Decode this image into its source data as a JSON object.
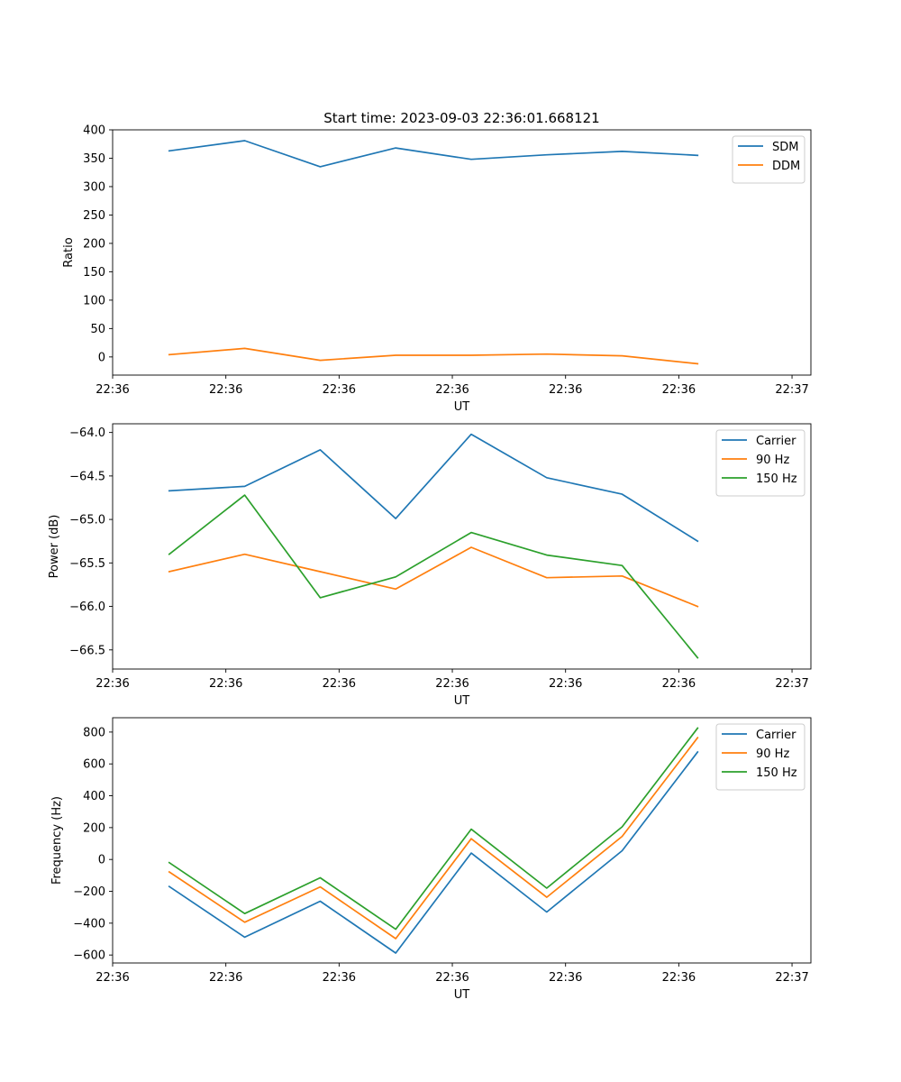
{
  "chart_data": [
    {
      "type": "line",
      "title": "Start time: 2023-09-03 22:36:01.668121",
      "xlabel": "UT",
      "ylabel": "Ratio",
      "x": [
        0,
        1,
        2,
        3,
        4,
        5,
        6,
        7
      ],
      "xlim": [
        -0.75,
        8.5
      ],
      "ylim": [
        -32,
        400
      ],
      "xticks": [
        -0.75,
        0.75,
        2.25,
        3.75,
        5.25,
        6.75,
        8.25
      ],
      "xtick_labels": [
        "22:36",
        "22:36",
        "22:36",
        "22:36",
        "22:36",
        "22:36",
        "22:37"
      ],
      "yticks": [
        0,
        50,
        100,
        150,
        200,
        250,
        300,
        350,
        400
      ],
      "ytick_labels": [
        "0",
        "50",
        "100",
        "150",
        "200",
        "250",
        "300",
        "350",
        "400"
      ],
      "legend_position": "top-right",
      "series": [
        {
          "name": "SDM",
          "color": "#1f77b4",
          "values": [
            363,
            381,
            335,
            368,
            348,
            356,
            362,
            355
          ]
        },
        {
          "name": "DDM",
          "color": "#ff7f0e",
          "values": [
            4,
            15,
            -6,
            3,
            3,
            5,
            2,
            -12
          ]
        }
      ]
    },
    {
      "type": "line",
      "title": "",
      "xlabel": "UT",
      "ylabel": "Power (dB)",
      "x": [
        0,
        1,
        2,
        3,
        4,
        5,
        6,
        7
      ],
      "xlim": [
        -0.75,
        8.5
      ],
      "ylim": [
        -66.72,
        -63.9
      ],
      "xticks": [
        -0.75,
        0.75,
        2.25,
        3.75,
        5.25,
        6.75,
        8.25
      ],
      "xtick_labels": [
        "22:36",
        "22:36",
        "22:36",
        "22:36",
        "22:36",
        "22:36",
        "22:37"
      ],
      "yticks": [
        -64.0,
        -64.5,
        -65.0,
        -65.5,
        -66.0,
        -66.5
      ],
      "ytick_labels": [
        "−64.0",
        "−64.5",
        "−65.0",
        "−65.5",
        "−66.0",
        "−66.5"
      ],
      "legend_position": "top-right",
      "series": [
        {
          "name": "Carrier",
          "color": "#1f77b4",
          "values": [
            -64.67,
            -64.62,
            -64.2,
            -64.99,
            -64.02,
            -64.52,
            -64.71,
            -65.25
          ]
        },
        {
          "name": "90 Hz",
          "color": "#ff7f0e",
          "values": [
            -65.6,
            -65.4,
            -65.6,
            -65.8,
            -65.32,
            -65.67,
            -65.65,
            -66.0
          ]
        },
        {
          "name": "150 Hz",
          "color": "#2ca02c",
          "values": [
            -65.4,
            -64.72,
            -65.9,
            -65.66,
            -65.15,
            -65.41,
            -65.53,
            -66.59
          ]
        }
      ]
    },
    {
      "type": "line",
      "title": "",
      "xlabel": "UT",
      "ylabel": "Frequency (Hz)",
      "x": [
        0,
        1,
        2,
        3,
        4,
        5,
        6,
        7
      ],
      "xlim": [
        -0.75,
        8.5
      ],
      "ylim": [
        -650,
        890
      ],
      "xticks": [
        -0.75,
        0.75,
        2.25,
        3.75,
        5.25,
        6.75,
        8.25
      ],
      "xtick_labels": [
        "22:36",
        "22:36",
        "22:36",
        "22:36",
        "22:36",
        "22:36",
        "22:37"
      ],
      "yticks": [
        -600,
        -400,
        -200,
        0,
        200,
        400,
        600,
        800
      ],
      "ytick_labels": [
        "−600",
        "−400",
        "−200",
        "0",
        "200",
        "400",
        "600",
        "800"
      ],
      "legend_position": "top-right",
      "series": [
        {
          "name": "Carrier",
          "color": "#1f77b4",
          "values": [
            -170,
            -488,
            -262,
            -588,
            40,
            -330,
            55,
            675
          ]
        },
        {
          "name": "90 Hz",
          "color": "#ff7f0e",
          "values": [
            -78,
            -394,
            -172,
            -497,
            130,
            -237,
            145,
            765
          ]
        },
        {
          "name": "150 Hz",
          "color": "#2ca02c",
          "values": [
            -20,
            -340,
            -115,
            -438,
            190,
            -180,
            205,
            825
          ]
        }
      ]
    }
  ]
}
